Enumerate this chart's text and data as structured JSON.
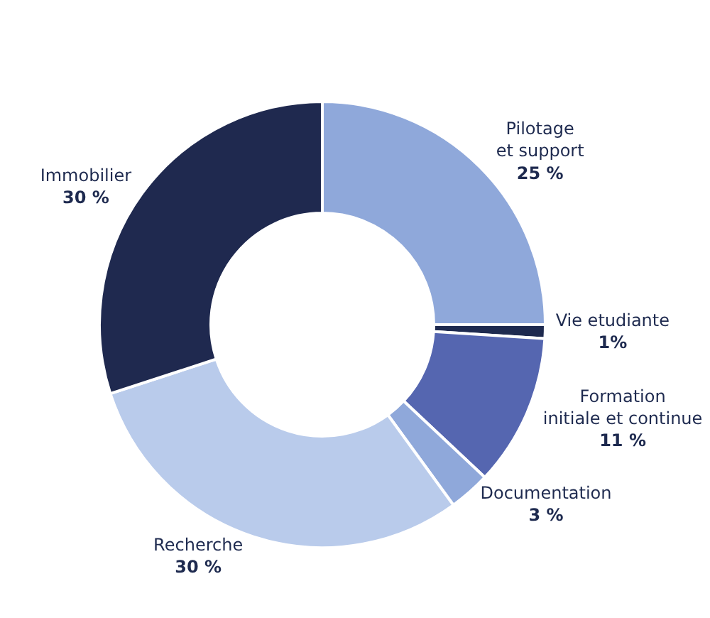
{
  "chart_data": {
    "type": "donut",
    "categories": [
      "Vie etudiante",
      "Formation\ninitiale et continue",
      "Documentation",
      "Recherche",
      "Immobilier",
      "Pilotage\net support"
    ],
    "values": [
      1,
      11,
      3,
      30,
      30,
      25
    ],
    "value_labels": [
      "1%",
      "11 %",
      "3 %",
      "30 %",
      "30 %",
      "25 %"
    ],
    "colors": [
      "#1e2a4f",
      "#5566b0",
      "#8fa8da",
      "#b9cbeb",
      "#1f294f",
      "#8fa8da"
    ],
    "legend": false
  }
}
